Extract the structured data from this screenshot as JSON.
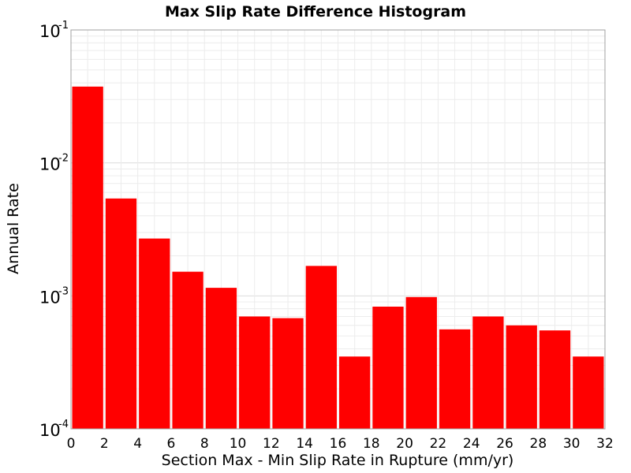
{
  "chart_data": {
    "type": "bar",
    "title": "Max Slip Rate Difference Histogram",
    "xlabel": "Section Max - Min Slip Rate in Rupture (mm/yr)",
    "ylabel": "Annual Rate",
    "yscale": "log",
    "xlim": [
      0,
      32
    ],
    "ylim": [
      0.0001,
      0.1
    ],
    "bin_width": 2,
    "x_ticks": [
      "0",
      "2",
      "4",
      "6",
      "8",
      "10",
      "12",
      "14",
      "16",
      "18",
      "20",
      "22",
      "24",
      "26",
      "28",
      "30",
      "32"
    ],
    "y_ticks": [
      {
        "base": "10",
        "exp": "-4"
      },
      {
        "base": "10",
        "exp": "-3"
      },
      {
        "base": "10",
        "exp": "-2"
      },
      {
        "base": "10",
        "exp": "-1"
      }
    ],
    "x": [
      1,
      3,
      5,
      7,
      9,
      11,
      13,
      15,
      17,
      19,
      21,
      23,
      25,
      27,
      29,
      31
    ],
    "values": [
      0.0375,
      0.0054,
      0.0027,
      0.00152,
      0.00115,
      0.0007,
      0.00068,
      0.00168,
      0.00035,
      0.00083,
      0.00098,
      0.00056,
      0.0007,
      0.0006,
      0.00055,
      0.00035
    ],
    "bar_color": "#ff0000",
    "grid": true
  }
}
